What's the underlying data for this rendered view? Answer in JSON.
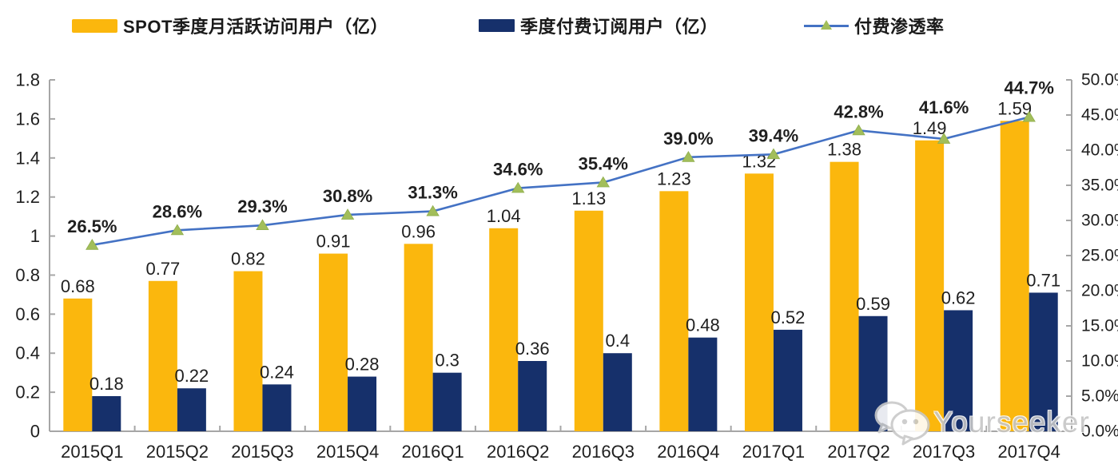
{
  "legend": [
    {
      "label": "SPOT季度月活跃访问用户（亿）",
      "swatch": "yellow-bar-swatch",
      "color": "#FBB70D"
    },
    {
      "label": "季度付费订阅用户（亿）",
      "swatch": "navy-bar-swatch",
      "color": "#16306B"
    },
    {
      "label": "付费渗透率",
      "swatch": "line-marker-swatch",
      "color": "#4472C4",
      "marker_color": "#A2BE5A"
    }
  ],
  "watermark": {
    "text": "Yourseeker",
    "icon": "wechat-icon"
  },
  "chart_data": {
    "type": "bar",
    "subtype": "grouped-bars-with-line-combo",
    "categories": [
      "2015Q1",
      "2015Q2",
      "2015Q3",
      "2015Q4",
      "2016Q1",
      "2016Q2",
      "2016Q3",
      "2016Q4",
      "2017Q1",
      "2017Q2",
      "2017Q3",
      "2017Q4"
    ],
    "series": [
      {
        "name": "SPOT季度月活跃访问用户（亿）",
        "type": "bar",
        "axis": "left",
        "color": "#FBB70D",
        "values": [
          0.68,
          0.77,
          0.82,
          0.91,
          0.96,
          1.04,
          1.13,
          1.23,
          1.32,
          1.38,
          1.49,
          1.59
        ],
        "labels": [
          "0.68",
          "0.77",
          "0.82",
          "0.91",
          "0.96",
          "1.04",
          "1.13",
          "1.23",
          "1.32",
          "1.38",
          "1.49",
          "1.59"
        ]
      },
      {
        "name": "季度付费订阅用户（亿）",
        "type": "bar",
        "axis": "left",
        "color": "#16306B",
        "values": [
          0.18,
          0.22,
          0.24,
          0.28,
          0.3,
          0.36,
          0.4,
          0.48,
          0.52,
          0.59,
          0.62,
          0.71
        ],
        "labels": [
          "0.18",
          "0.22",
          "0.24",
          "0.28",
          "0.3",
          "0.36",
          "0.4",
          "0.48",
          "0.52",
          "0.59",
          "0.62",
          "0.71"
        ]
      },
      {
        "name": "付费渗透率",
        "type": "line",
        "axis": "right",
        "color": "#4472C4",
        "marker": "triangle",
        "marker_color": "#A2BE5A",
        "values": [
          26.5,
          28.6,
          29.3,
          30.8,
          31.3,
          34.6,
          35.4,
          39.0,
          39.4,
          42.8,
          41.6,
          44.7
        ],
        "labels": [
          "26.5%",
          "28.6%",
          "29.3%",
          "30.8%",
          "31.3%",
          "34.6%",
          "35.4%",
          "39.0%",
          "39.4%",
          "42.8%",
          "41.6%",
          "44.7%"
        ]
      }
    ],
    "left_axis": {
      "min": 0,
      "max": 1.8,
      "step": 0.2,
      "ticks": [
        "0",
        "0.2",
        "0.4",
        "0.6",
        "0.8",
        "1",
        "1.2",
        "1.4",
        "1.6",
        "1.8"
      ]
    },
    "right_axis": {
      "min": 0,
      "max": 50,
      "step": 5,
      "ticks": [
        "0.0%",
        "5.0%",
        "10.0%",
        "15.0%",
        "20.0%",
        "25.0%",
        "30.0%",
        "35.0%",
        "40.0%",
        "45.0%",
        "50.0%"
      ]
    },
    "grid": false,
    "legend_position": "top",
    "axis_color": "#A6A6A6",
    "label_color": "#1f1f1f"
  }
}
